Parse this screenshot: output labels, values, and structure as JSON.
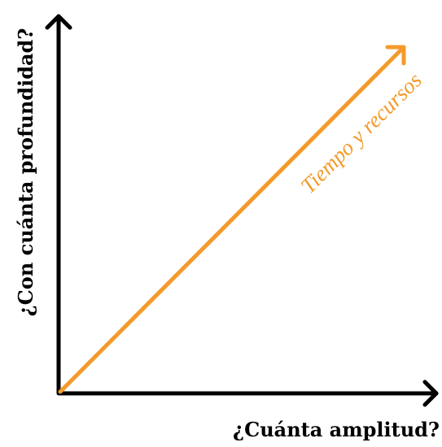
{
  "diagram": {
    "y_axis_label": "¿Con cuánta profundidad?",
    "x_axis_label": "¿Cuánta amplitud?",
    "arrow_label": "Tiempo y recursos"
  }
}
